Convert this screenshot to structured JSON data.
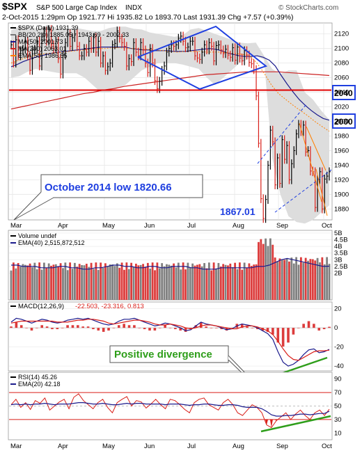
{
  "header": {
    "symbol": "$SPX",
    "name": "S&P 500 Large Cap Index",
    "exchange": "INDX",
    "credit": "© StockCharts.com",
    "quote_line": "2-Oct-2015 1:29pm  Op 1921.77  Hi 1935.82  Lo 1893.70  Last 1931.39  Chg +7.57 (+0.39%)"
  },
  "colors": {
    "up": "#000000",
    "down": "#d91e18",
    "ma50": "#1a1a8c",
    "ma200": "#cc2222",
    "ema50": "#ff7f00",
    "annotation": "#1f3fe0",
    "band_fill": "#dddddd",
    "volume_up": "#808080",
    "volume_down": "#dc3c3c",
    "rsi_line": "#d91e18",
    "green": "#2e9e1a"
  },
  "price_panel": {
    "legend": [
      {
        "id": "series",
        "text": "$SPX (Daily) 1931.39",
        "color": "#000000"
      },
      {
        "id": "bb",
        "text": "BB(20,2.0) 1885.05 - 1943.69 - 2002.33",
        "color": "#777777"
      },
      {
        "id": "ma50",
        "text": "MA(50) 2001.73",
        "color": "#1a1a8c"
      },
      {
        "id": "ma200",
        "text": "MA(200) 2063.01",
        "color": "#cc2222"
      },
      {
        "id": "ema50",
        "text": "EMA(50) 1986.55",
        "color": "#ff7f00"
      }
    ],
    "annotations": {
      "oct_low": "October 2014 low 1820.66",
      "low_value": "1867.01",
      "level_2040": "2040",
      "level_2000": "2000"
    }
  },
  "volume_panel": {
    "legend": [
      {
        "id": "volume",
        "text": "Volume undef",
        "color": "#000000"
      },
      {
        "id": "ema40",
        "text": "EMA(40) 2,515,872,512",
        "color": "#1a1a8c"
      }
    ]
  },
  "macd_panel": {
    "legend": [
      {
        "id": "macd",
        "text": "MACD(12,26,9)",
        "color": "#000000"
      },
      {
        "id": "macd_val",
        "text": "-22.503, -23.316, 0.813",
        "color": "#d91e18"
      }
    ],
    "note": "Positive divergence"
  },
  "rsi_panel": {
    "legend": [
      {
        "id": "rsi",
        "text": "RSI(14) 45.26",
        "color": "#000000"
      },
      {
        "id": "ema20",
        "text": "EMA(20) 42.18",
        "color": "#1a1a8c"
      }
    ]
  },
  "chart_data": {
    "type": "line",
    "months": [
      "Mar",
      "Apr",
      "May",
      "Jun",
      "Jul",
      "Aug",
      "Sep",
      "Oct"
    ],
    "price": {
      "yticks": [
        1880,
        1900,
        1920,
        1940,
        1960,
        1980,
        2000,
        2020,
        2040,
        2060,
        2080,
        2100,
        2120
      ],
      "ylim": [
        1865,
        2135
      ],
      "close": [
        2105,
        2080,
        2112,
        2090,
        2097,
        2099,
        2110,
        2090,
        2070,
        2098,
        2099,
        2110,
        2076,
        2116,
        2124,
        2110,
        2126,
        2105,
        2100,
        2110,
        2086,
        2065,
        2091,
        2108,
        2120,
        2103,
        2115,
        2120,
        2103,
        2090,
        2090,
        2100,
        2095,
        2110,
        2100,
        2115,
        2095,
        2110,
        2080,
        2090,
        2070,
        2075,
        2080,
        2105,
        2107,
        2124,
        2114,
        2108,
        2103,
        2076,
        2086,
        2082,
        2108,
        2095,
        2090,
        2108,
        2098,
        2080,
        2067,
        2100,
        2080,
        2056,
        2045,
        2055,
        2070,
        2076,
        2095,
        2100,
        2105,
        2103,
        2105,
        2114,
        2117,
        2110,
        2101,
        2102,
        2110,
        2110,
        2090,
        2087,
        2085,
        2095,
        2105,
        2098,
        2108,
        2103,
        2083,
        2104,
        2105,
        2098,
        2093,
        2099,
        2091,
        2088,
        2101,
        2084,
        2102,
        2087,
        2083,
        2097,
        2091,
        2081,
        2079,
        2071,
        2035,
        1970,
        1894,
        1867,
        1893,
        1940,
        1988,
        1972,
        1913,
        1950,
        1915,
        1975,
        1948,
        1967,
        1920,
        1942,
        1960,
        1983,
        1996,
        1986,
        1995,
        1958,
        1960,
        1932,
        1931,
        1882,
        1920,
        1931,
        1880,
        1921,
        1925,
        1931
      ],
      "ma50": [
        2075,
        2078,
        2082,
        2085,
        2088,
        2090,
        2092,
        2094,
        2095,
        2096,
        2097,
        2098,
        2099,
        2100,
        2101,
        2102,
        2102,
        2102,
        2102,
        2102,
        2100,
        2099,
        2098,
        2098,
        2097,
        2097,
        2097,
        2096,
        2096,
        2096,
        2097,
        2098,
        2099,
        2100,
        2099,
        2097,
        2094,
        2092,
        2090,
        2089,
        2089,
        2090,
        2088,
        2084,
        2076,
        2063,
        2051,
        2040,
        2030,
        2022,
        2015,
        2009,
        2004,
        2001.73
      ],
      "ma200": [
        2017,
        2020,
        2023,
        2026,
        2029,
        2032,
        2035,
        2038,
        2040,
        2043,
        2045,
        2048,
        2050,
        2052,
        2054,
        2056,
        2058,
        2060,
        2062,
        2064,
        2065,
        2066,
        2067,
        2068,
        2068,
        2068,
        2068,
        2067,
        2066,
        2065,
        2064,
        2063.01
      ],
      "ema50": [
        2080,
        2084,
        2087,
        2090,
        2092,
        2093,
        2094,
        2095,
        2096,
        2097,
        2098,
        2099,
        2100,
        2100,
        2101,
        2101,
        2100,
        2100,
        2099,
        2099,
        2098,
        2097,
        2096,
        2095,
        2096,
        2096,
        2096,
        2095,
        2095,
        2095,
        2094,
        2093,
        2092,
        2090,
        2080,
        2066,
        2050,
        2038,
        2030,
        2022,
        2015,
        2008,
        2000,
        1993,
        1986.55
      ],
      "bb_upper": [
        2125,
        2130,
        2130,
        2128,
        2128,
        2130,
        2128,
        2128,
        2128,
        2126,
        2124,
        2124,
        2128,
        2130,
        2130,
        2127,
        2126,
        2122,
        2120,
        2118,
        2116,
        2118,
        2126,
        2128,
        2124,
        2120,
        2116,
        2112,
        2108,
        2107,
        2108,
        2090,
        2072,
        2065,
        2070,
        2070,
        2040,
        2030,
        2015,
        2002.33
      ],
      "bb_lower": [
        2060,
        2062,
        2068,
        2072,
        2070,
        2068,
        2066,
        2066,
        2066,
        2060,
        2050,
        2040,
        2040,
        2045,
        2050,
        2060,
        2070,
        2075,
        2080,
        2080,
        2080,
        2078,
        2075,
        2072,
        2060,
        2050,
        2060,
        2070,
        2080,
        2085,
        2090,
        2085,
        1950,
        1900,
        1870,
        1862,
        1860,
        1865,
        1875,
        1885.05
      ],
      "annotations_levels": [
        2040,
        2000
      ]
    },
    "volume": {
      "yticks": [
        "2B",
        "2.5B",
        "3B",
        "3.5B",
        "4B",
        "4.5B",
        "5B"
      ],
      "ylim": [
        0,
        5.2
      ],
      "ema40": [
        2.6,
        2.6,
        2.5,
        2.5,
        2.5,
        2.4,
        2.4,
        2.4,
        2.5,
        2.5,
        2.4,
        2.4,
        2.3,
        2.3,
        2.4,
        2.4,
        2.5,
        2.6,
        2.6,
        2.5,
        2.5,
        2.4,
        2.4,
        2.5,
        2.5,
        2.4,
        2.4,
        2.5,
        2.5,
        2.5,
        2.4,
        2.4,
        2.3,
        2.3,
        2.3,
        2.4,
        2.4,
        2.4,
        2.4,
        2.4,
        2.4,
        2.5,
        2.5,
        2.6,
        2.8,
        3.0,
        3.1,
        3.0,
        2.9,
        2.8,
        2.7,
        2.6,
        2.5,
        2.52
      ]
    },
    "macd": {
      "yticks": [
        -40,
        -20,
        0,
        20
      ],
      "ylim": [
        -45,
        27
      ],
      "macd": [
        6,
        10,
        9,
        7,
        5,
        7,
        9,
        8,
        6,
        5,
        6,
        8,
        9,
        10,
        9,
        10,
        8,
        6,
        4,
        3,
        4,
        7,
        9,
        9,
        10,
        8,
        6,
        4,
        2,
        3,
        5,
        4,
        2,
        0,
        -3,
        -2,
        2,
        6,
        4,
        3,
        2,
        0,
        -2,
        -1,
        2,
        4,
        3,
        2,
        0,
        -3,
        -6,
        -12,
        -25,
        -36,
        -40,
        -38,
        -34,
        -28,
        -23,
        -22,
        -26,
        -25,
        -22.5
      ],
      "signal": [
        5,
        6,
        7,
        7,
        7,
        7,
        7,
        7,
        7,
        6,
        6,
        6,
        7,
        8,
        8,
        9,
        9,
        8,
        7,
        5,
        4,
        5,
        6,
        7,
        8,
        8,
        7,
        6,
        4,
        3,
        3,
        4,
        3,
        2,
        0,
        -1,
        0,
        2,
        3,
        3,
        2,
        1,
        0,
        -1,
        -1,
        1,
        2,
        2,
        1,
        -1,
        -3,
        -7,
        -14,
        -22,
        -29,
        -33,
        -34,
        -31,
        -28,
        -25,
        -24,
        -24,
        -23.3
      ]
    },
    "rsi": {
      "yticks": [
        10,
        30,
        50,
        70,
        90
      ],
      "ylim": [
        0,
        100
      ],
      "overbought": 70,
      "oversold": 30,
      "rsi": [
        52,
        60,
        48,
        55,
        45,
        58,
        54,
        62,
        44,
        50,
        56,
        60,
        46,
        63,
        68,
        58,
        52,
        46,
        55,
        60,
        48,
        40,
        55,
        60,
        64,
        50,
        58,
        56,
        47,
        53,
        60,
        52,
        46,
        60,
        58,
        52,
        45,
        40,
        55,
        60,
        62,
        52,
        48,
        44,
        55,
        60,
        52,
        40,
        36,
        44,
        52,
        48,
        40,
        22,
        18,
        28,
        34,
        40,
        30,
        38,
        44,
        36,
        30,
        40,
        44,
        36,
        45.26
      ],
      "ema20": [
        52,
        53,
        52,
        53,
        52,
        53,
        53,
        54,
        53,
        52,
        53,
        53,
        53,
        54,
        55,
        55,
        54,
        53,
        53,
        54,
        53,
        52,
        52,
        53,
        54,
        53,
        54,
        54,
        53,
        53,
        53,
        53,
        52,
        53,
        53,
        53,
        52,
        51,
        52,
        52,
        53,
        53,
        52,
        51,
        51,
        52,
        52,
        51,
        49,
        48,
        48,
        48,
        46,
        42,
        37,
        35,
        35,
        36,
        36,
        37,
        38,
        38,
        37,
        38,
        39,
        39,
        42.18
      ]
    }
  }
}
